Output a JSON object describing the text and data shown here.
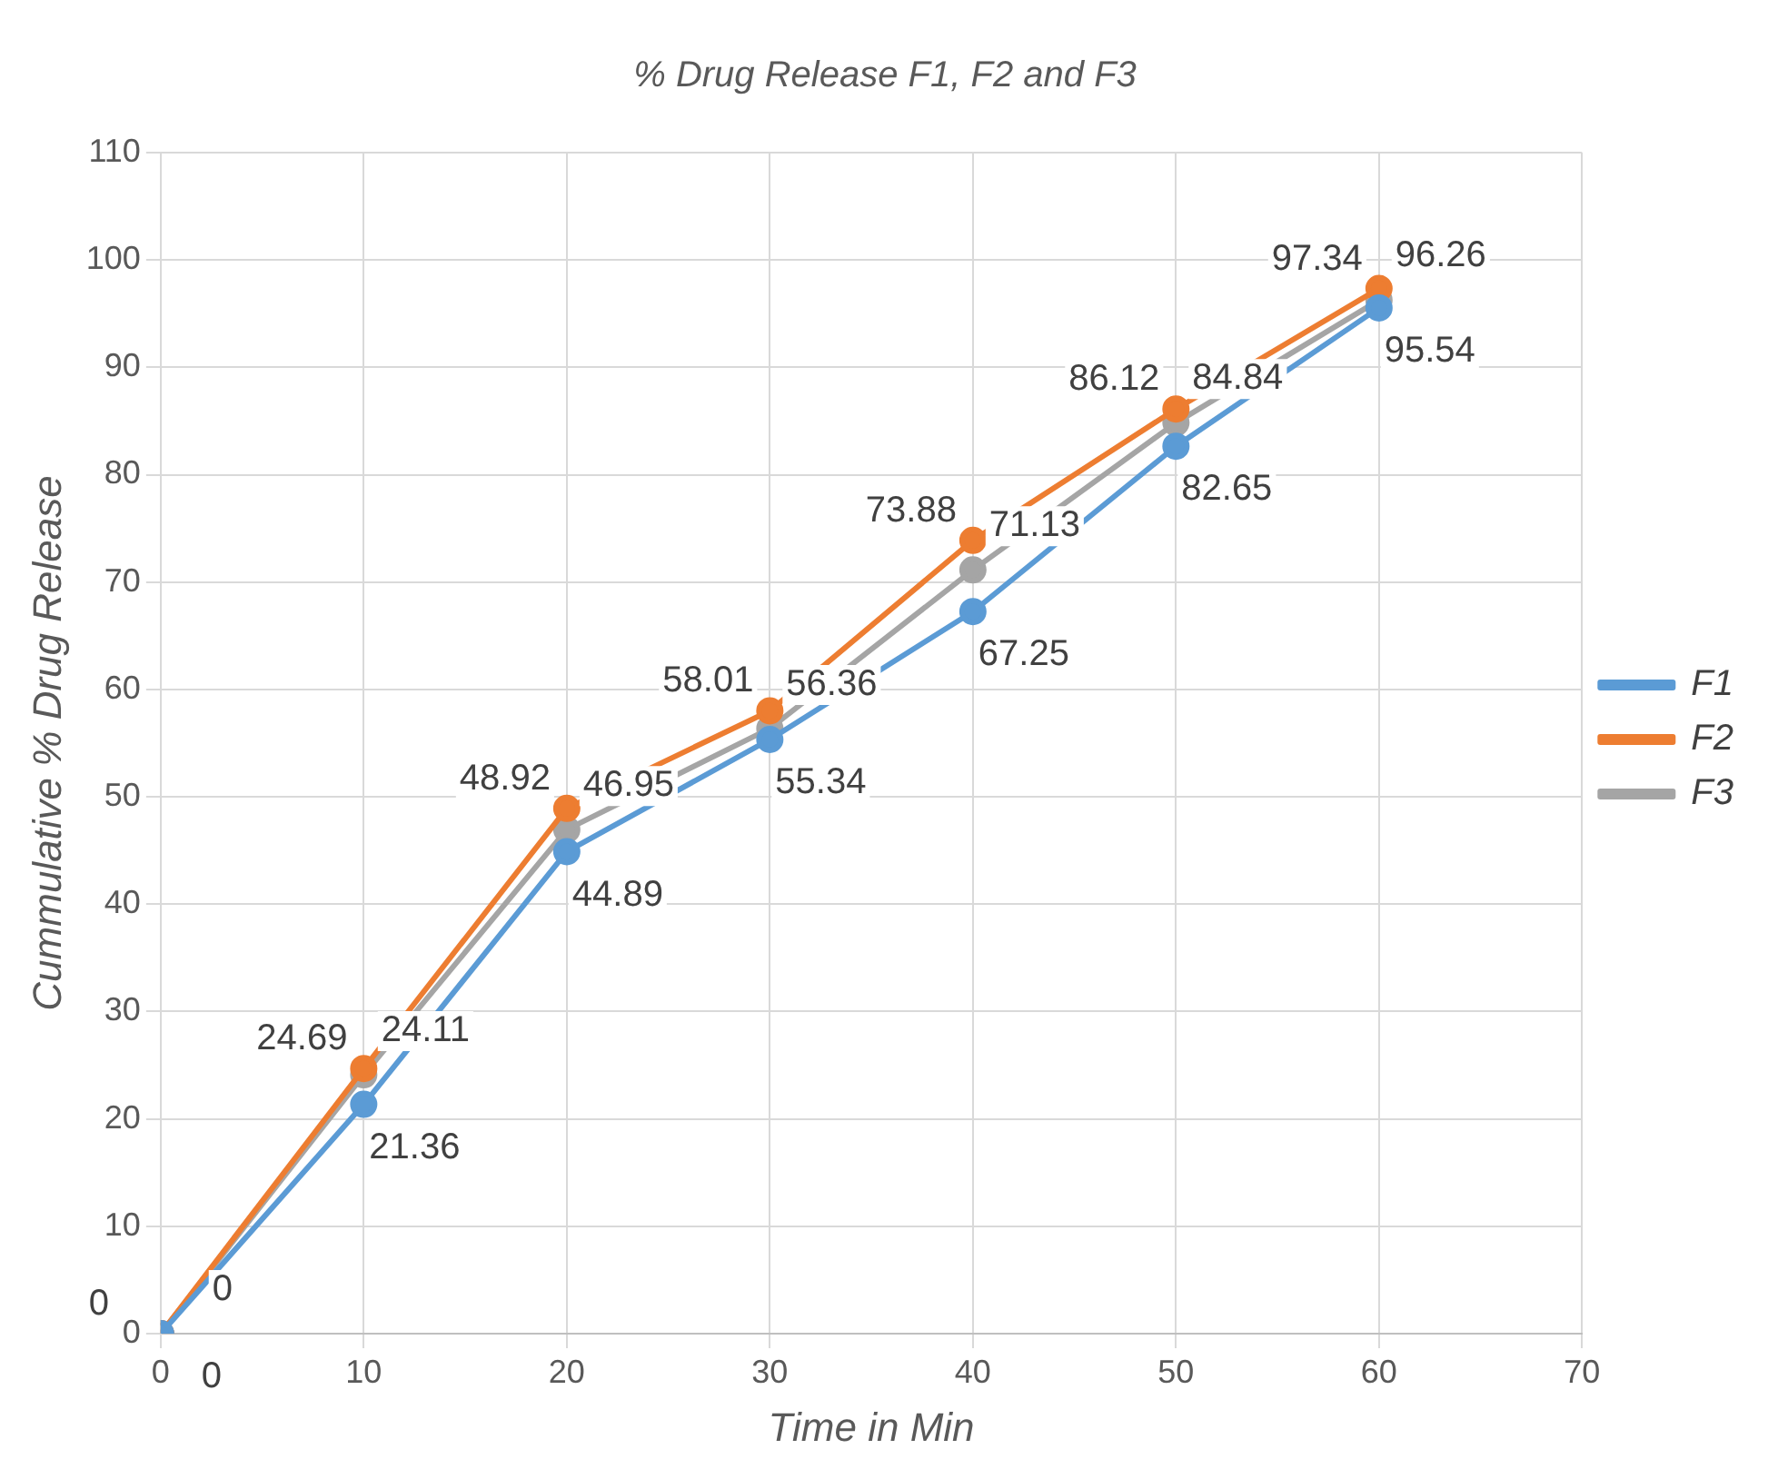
{
  "chart_data": {
    "type": "line",
    "title": "% Drug Release F1, F2 and F3",
    "xlabel": "Time in Min",
    "ylabel": "Cummulative % Drug Release",
    "x": [
      0,
      10,
      20,
      30,
      40,
      50,
      60
    ],
    "series": [
      {
        "name": "F1",
        "color": "#5b9bd5",
        "values": [
          0,
          21.36,
          44.89,
          55.34,
          67.25,
          82.65,
          95.54
        ]
      },
      {
        "name": "F2",
        "color": "#ed7d31",
        "values": [
          0,
          24.69,
          48.92,
          58.01,
          73.88,
          86.12,
          97.34
        ]
      },
      {
        "name": "F3",
        "color": "#a5a5a5",
        "values": [
          0,
          24.11,
          46.95,
          56.36,
          71.13,
          84.84,
          96.26
        ]
      }
    ],
    "xlim": [
      0,
      70
    ],
    "xticks": [
      0,
      10,
      20,
      30,
      40,
      50,
      60,
      70
    ],
    "ylim": [
      0,
      110
    ],
    "yticks": [
      0,
      10,
      20,
      30,
      40,
      50,
      60,
      70,
      80,
      90,
      100,
      110
    ],
    "grid": true,
    "legend": "right",
    "marker": "circle",
    "line_style": "solid",
    "data_labels": true
  }
}
